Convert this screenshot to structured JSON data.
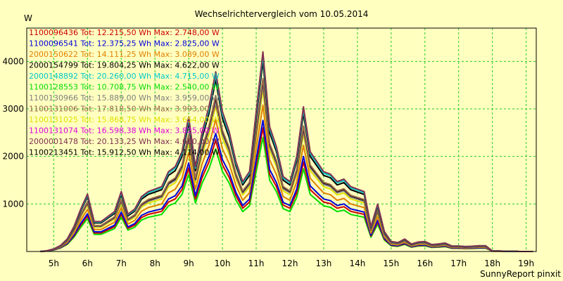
{
  "chart_data": {
    "type": "line",
    "title": "Wechselrichtervergleich vom 10.05.2014",
    "ylabel": "W",
    "footer": "SunnyReport pinxit",
    "ylim": [
      0,
      4700
    ],
    "yticks": [
      1000,
      2000,
      3000,
      4000
    ],
    "xlim": [
      4.2,
      19.3
    ],
    "xticks": [
      {
        "v": 5,
        "label": "5h"
      },
      {
        "v": 6,
        "label": "6h"
      },
      {
        "v": 7,
        "label": "7h"
      },
      {
        "v": 8,
        "label": "8h"
      },
      {
        "v": 9,
        "label": "9h"
      },
      {
        "v": 10,
        "label": "10h"
      },
      {
        "v": 11,
        "label": "11h"
      },
      {
        "v": 12,
        "label": "12h"
      },
      {
        "v": 13,
        "label": "13h"
      },
      {
        "v": 14,
        "label": "14h"
      },
      {
        "v": 15,
        "label": "15h"
      },
      {
        "v": 16,
        "label": "16h"
      },
      {
        "v": 17,
        "label": "17h"
      },
      {
        "v": 18,
        "label": "18h"
      },
      {
        "v": 19,
        "label": "19h"
      }
    ],
    "grid": true,
    "x": [
      4.6,
      4.8,
      5.0,
      5.2,
      5.4,
      5.6,
      5.8,
      6.0,
      6.2,
      6.4,
      6.6,
      6.8,
      7.0,
      7.2,
      7.4,
      7.6,
      7.8,
      8.0,
      8.2,
      8.4,
      8.6,
      8.8,
      9.0,
      9.2,
      9.4,
      9.6,
      9.8,
      10.0,
      10.2,
      10.4,
      10.6,
      10.8,
      11.0,
      11.2,
      11.4,
      11.6,
      11.8,
      12.0,
      12.2,
      12.4,
      12.6,
      12.8,
      13.0,
      13.2,
      13.4,
      13.6,
      13.8,
      14.0,
      14.2,
      14.4,
      14.6,
      14.8,
      15.0,
      15.2,
      15.4,
      15.6,
      15.8,
      16.0,
      16.2,
      16.4,
      16.6,
      16.8,
      17.0,
      17.2,
      17.4,
      17.6,
      17.8,
      18.0,
      18.2,
      18.4,
      18.6,
      18.8,
      19.0,
      19.2
    ],
    "base": [
      0,
      15,
      50,
      120,
      250,
      500,
      850,
      1150,
      600,
      600,
      700,
      800,
      1200,
      750,
      850,
      1100,
      1200,
      1250,
      1300,
      1600,
      1700,
      2000,
      2700,
      1700,
      2400,
      2900,
      3600,
      2800,
      2400,
      1800,
      1400,
      1600,
      2800,
      4000,
      2500,
      2100,
      1500,
      1400,
      1900,
      2900,
      2000,
      1800,
      1600,
      1550,
      1400,
      1450,
      1300,
      1250,
      1200,
      500,
      950,
      400,
      200,
      180,
      250,
      150,
      190,
      200,
      140,
      150,
      170,
      110,
      110,
      100,
      105,
      115,
      115,
      10,
      10,
      5,
      5,
      0,
      0,
      0
    ],
    "series": [
      {
        "id": "1100096436",
        "tot": "12.215,50",
        "max": "2.748,00",
        "color": "#CC0000",
        "factor": 0.65
      },
      {
        "id": "1100096541",
        "tot": "12.375,25",
        "max": "2.825,00",
        "color": "#0000DD",
        "factor": 0.69
      },
      {
        "id": "2000150622",
        "tot": "14.111,25",
        "max": "3.089,00",
        "color": "#E08000",
        "factor": 0.77
      },
      {
        "id": "2000154799",
        "tot": "19.804,25",
        "max": "4.622,00",
        "color": "#000000",
        "factor": 1.0
      },
      {
        "id": "2000148892",
        "tot": "20.260,00",
        "max": "4.715,00",
        "color": "#00C8C8",
        "factor": 1.03
      },
      {
        "id": "1100128553",
        "tot": "10.708,75",
        "max": "2.540,00",
        "color": "#00DD00",
        "factor": 0.6
      },
      {
        "id": "1100130966",
        "tot": "15.889,00",
        "max": "3.959,00",
        "color": "#808080",
        "factor": 0.88
      },
      {
        "id": "1100131006",
        "tot": "17.818,50",
        "max": "3.993,00",
        "color": "#9A6A4A",
        "factor": 0.91
      },
      {
        "id": "1100131025",
        "tot": "15.868,75",
        "max": "3.654,00",
        "color": "#E0E000",
        "factor": 0.85
      },
      {
        "id": "1100131074",
        "tot": "16.598,38",
        "max": "3.825,00",
        "color": "#DD00DD",
        "factor": 0.9
      },
      {
        "id": "2000001478",
        "tot": "20.133,25",
        "max": "4.680,00",
        "color": "#803050",
        "factor": 1.05
      },
      {
        "id": "1100213451",
        "tot": "15.912,50",
        "max": "4.114,00",
        "color": "#000000",
        "factor": 0.9
      }
    ],
    "legend_labels": {
      "tot": "Tot:",
      "wh": "Wh",
      "max": "Max:",
      "w": "W"
    }
  }
}
